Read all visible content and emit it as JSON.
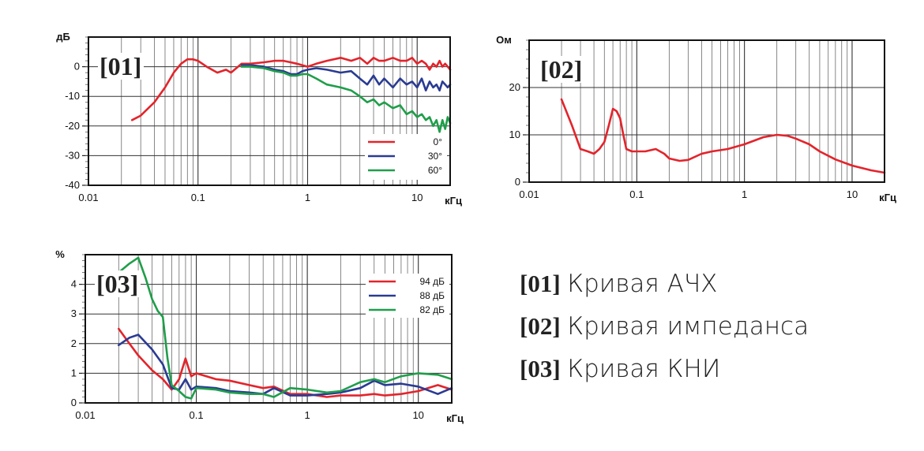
{
  "chart_data": [
    {
      "id": "01",
      "type": "line",
      "tag": "[01]",
      "ylabel": "дБ",
      "xlabel": "кГц",
      "xscale": "log",
      "xlim": [
        0.01,
        20
      ],
      "ylim": [
        -40,
        10
      ],
      "yticks": [
        0,
        -10,
        -20,
        -30,
        -40
      ],
      "ytick_labels": [
        "0",
        "-10",
        "-20",
        "-30",
        "-40"
      ],
      "xticks": [
        0.01,
        0.1,
        1,
        10
      ],
      "xtick_labels": [
        "0.01",
        "0.1",
        "1",
        "10"
      ],
      "legend_position": "lower-right",
      "series": [
        {
          "name": "0°",
          "color": "#e3242b",
          "x": [
            0.025,
            0.03,
            0.04,
            0.05,
            0.06,
            0.07,
            0.08,
            0.09,
            0.1,
            0.12,
            0.15,
            0.18,
            0.2,
            0.25,
            0.3,
            0.4,
            0.5,
            0.6,
            0.7,
            0.8,
            1,
            1.2,
            1.5,
            2,
            2.5,
            3,
            3.5,
            4,
            4.5,
            5,
            6,
            7,
            8,
            9,
            10,
            11,
            12,
            13,
            14,
            15,
            16,
            17,
            18,
            19,
            20
          ],
          "y": [
            -18,
            -16.5,
            -12,
            -7,
            -2,
            1,
            2.5,
            2.5,
            2,
            0,
            -2,
            -1,
            -2,
            1,
            1,
            1.5,
            2,
            2,
            1.5,
            1,
            0,
            1,
            2,
            3,
            2,
            3,
            1,
            3,
            2,
            2,
            3,
            2,
            2,
            3,
            1,
            2,
            1,
            -1,
            1,
            0,
            2,
            0,
            1,
            0,
            -1
          ]
        },
        {
          "name": "30°",
          "color": "#2a3b93",
          "x": [
            0.25,
            0.3,
            0.4,
            0.5,
            0.6,
            0.7,
            0.8,
            0.9,
            1,
            1.2,
            1.5,
            2,
            2.5,
            3,
            3.5,
            4,
            4.5,
            5,
            6,
            7,
            8,
            9,
            10,
            11,
            12,
            13,
            14,
            15,
            16,
            17,
            18,
            19,
            20
          ],
          "y": [
            0.5,
            0.5,
            0,
            -1,
            -1.5,
            -2.5,
            -2.5,
            -1.5,
            -1,
            -0.5,
            -1,
            -2,
            -1.5,
            -4,
            -6,
            -3,
            -6,
            -4,
            -7,
            -4,
            -6,
            -5,
            -7,
            -4,
            -8,
            -5,
            -7,
            -6,
            -8,
            -5,
            -6,
            -7,
            -6
          ]
        },
        {
          "name": "60°",
          "color": "#1f9e4a",
          "x": [
            0.25,
            0.3,
            0.4,
            0.5,
            0.6,
            0.7,
            0.8,
            0.9,
            1,
            1.2,
            1.5,
            2,
            2.5,
            3,
            3.5,
            4,
            4.5,
            5,
            6,
            7,
            8,
            9,
            10,
            11,
            12,
            13,
            14,
            15,
            16,
            17,
            18,
            19,
            20
          ],
          "y": [
            0,
            0,
            -0.5,
            -1.5,
            -2,
            -3,
            -3,
            -2.5,
            -2.5,
            -4,
            -6,
            -7,
            -8,
            -10,
            -12,
            -11,
            -13,
            -12,
            -14,
            -13,
            -16,
            -15,
            -17,
            -16,
            -18,
            -17,
            -20,
            -18,
            -22,
            -18,
            -21,
            -17,
            -19
          ]
        }
      ]
    },
    {
      "id": "02",
      "type": "line",
      "tag": "[02]",
      "ylabel": "Ом",
      "xlabel": "кГц",
      "xscale": "log",
      "xlim": [
        0.01,
        20
      ],
      "ylim": [
        0,
        30
      ],
      "yticks": [
        0,
        10,
        20
      ],
      "ytick_labels": [
        "0",
        "10",
        "20"
      ],
      "xticks": [
        0.01,
        0.1,
        1,
        10
      ],
      "xtick_labels": [
        "0.01",
        "0.1",
        "1",
        "10"
      ],
      "series": [
        {
          "name": "",
          "color": "#e3242b",
          "x": [
            0.02,
            0.025,
            0.03,
            0.035,
            0.04,
            0.045,
            0.05,
            0.055,
            0.06,
            0.065,
            0.07,
            0.075,
            0.08,
            0.09,
            0.1,
            0.12,
            0.15,
            0.18,
            0.2,
            0.25,
            0.3,
            0.4,
            0.5,
            0.7,
            1,
            1.5,
            2,
            2.5,
            3,
            4,
            5,
            7,
            10,
            15,
            20
          ],
          "y": [
            17.5,
            12,
            7,
            6.5,
            6,
            7,
            8.5,
            12,
            15.5,
            15,
            13.5,
            10,
            7,
            6.5,
            6.5,
            6.5,
            7,
            6,
            5,
            4.5,
            4.7,
            6,
            6.5,
            7,
            8,
            9.5,
            10,
            9.8,
            9.2,
            8,
            6.5,
            4.8,
            3.5,
            2.5,
            2
          ]
        }
      ]
    },
    {
      "id": "03",
      "type": "line",
      "tag": "[03]",
      "ylabel": "%",
      "xlabel": "кГц",
      "xscale": "log",
      "xlim": [
        0.01,
        20
      ],
      "ylim": [
        0,
        5
      ],
      "yticks": [
        0,
        1,
        2,
        3,
        4
      ],
      "ytick_labels": [
        "0",
        "1",
        "2",
        "3",
        "4"
      ],
      "xticks": [
        0.01,
        0.1,
        1,
        10
      ],
      "xtick_labels": [
        "0.01",
        "0.1",
        "1",
        "10"
      ],
      "legend_position": "top-right",
      "series": [
        {
          "name": "94 дБ",
          "color": "#e3242b",
          "x": [
            0.02,
            0.025,
            0.03,
            0.04,
            0.05,
            0.06,
            0.07,
            0.08,
            0.09,
            0.1,
            0.15,
            0.2,
            0.3,
            0.4,
            0.5,
            0.7,
            1,
            1.5,
            2,
            3,
            4,
            5,
            7,
            10,
            15,
            20
          ],
          "y": [
            2.5,
            2,
            1.6,
            1.1,
            0.8,
            0.45,
            0.8,
            1.5,
            0.9,
            1,
            0.8,
            0.75,
            0.6,
            0.5,
            0.55,
            0.3,
            0.3,
            0.2,
            0.25,
            0.25,
            0.3,
            0.25,
            0.3,
            0.4,
            0.6,
            0.45
          ]
        },
        {
          "name": "88 дБ",
          "color": "#2a3b93",
          "x": [
            0.02,
            0.025,
            0.03,
            0.04,
            0.05,
            0.06,
            0.07,
            0.08,
            0.09,
            0.1,
            0.15,
            0.2,
            0.3,
            0.4,
            0.5,
            0.7,
            1,
            1.5,
            2,
            3,
            4,
            5,
            7,
            10,
            15,
            20
          ],
          "y": [
            1.95,
            2.2,
            2.3,
            1.8,
            1.3,
            0.5,
            0.45,
            0.8,
            0.45,
            0.55,
            0.5,
            0.4,
            0.35,
            0.3,
            0.5,
            0.25,
            0.25,
            0.3,
            0.35,
            0.5,
            0.75,
            0.6,
            0.65,
            0.55,
            0.3,
            0.5
          ]
        },
        {
          "name": "82 дБ",
          "color": "#1f9e4a",
          "x": [
            0.02,
            0.025,
            0.03,
            0.035,
            0.04,
            0.045,
            0.05,
            0.055,
            0.06,
            0.07,
            0.08,
            0.09,
            0.1,
            0.15,
            0.2,
            0.3,
            0.4,
            0.5,
            0.7,
            1,
            1.5,
            2,
            3,
            4,
            5,
            7,
            10,
            15,
            20
          ],
          "y": [
            4.4,
            4.7,
            4.9,
            4.2,
            3.5,
            3.1,
            2.9,
            1.5,
            0.6,
            0.4,
            0.2,
            0.15,
            0.5,
            0.45,
            0.35,
            0.3,
            0.3,
            0.2,
            0.5,
            0.45,
            0.35,
            0.4,
            0.7,
            0.8,
            0.7,
            0.9,
            1,
            0.95,
            0.8
          ]
        }
      ]
    }
  ],
  "captions": [
    {
      "tag": "[01]",
      "text": "Кривая АЧХ"
    },
    {
      "tag": "[02]",
      "text": "Кривая импеданса"
    },
    {
      "tag": "[03]",
      "text": "Кривая КНИ"
    }
  ]
}
